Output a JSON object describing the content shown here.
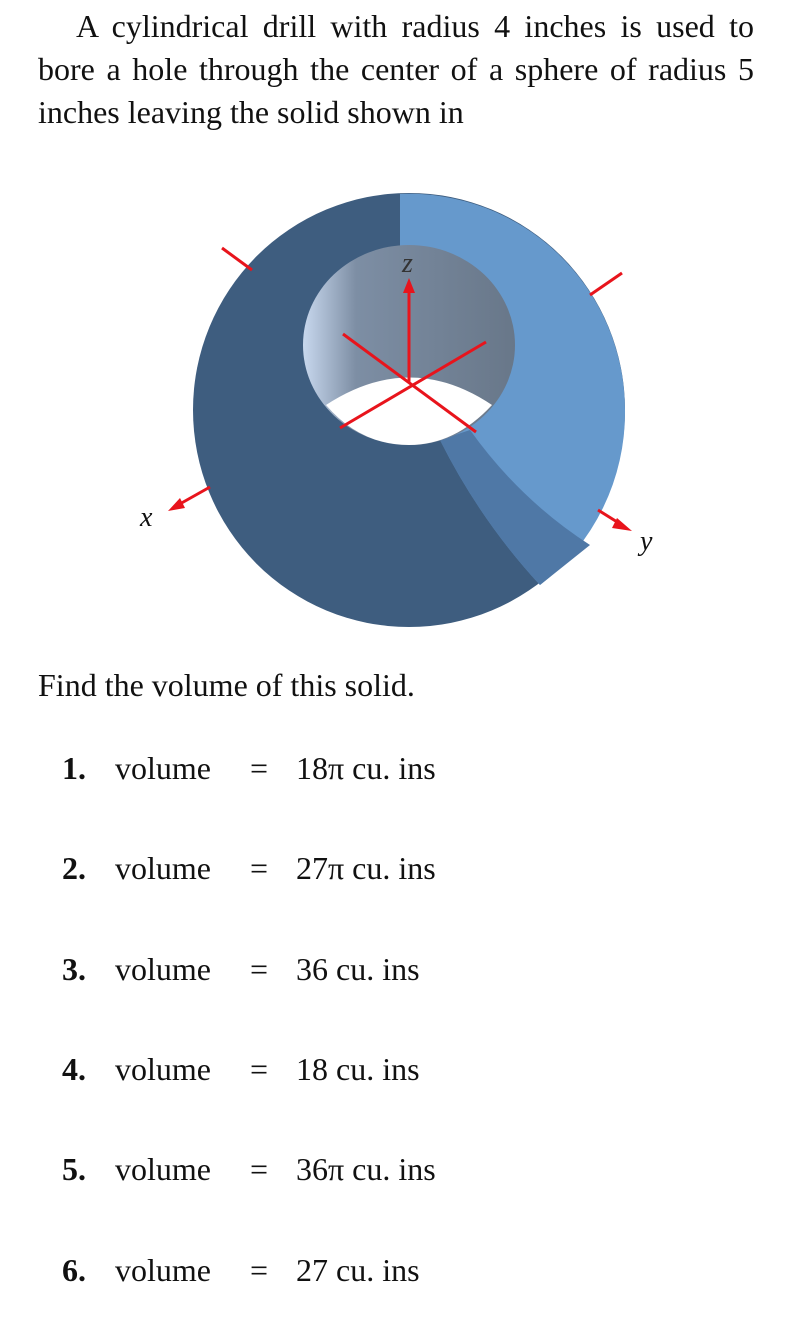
{
  "problem": {
    "text": "A cylindrical drill with radius 4 inches is used to bore a hole through the center of a sphere of radius 5 inches leaving the solid shown in",
    "figure": {
      "x_label": "x",
      "y_label": "y",
      "z_label": "z"
    },
    "prompt": "Find the volume of this solid."
  },
  "options": [
    {
      "number": "1.",
      "lhs": "volume",
      "eq": "=",
      "rhs": "18π cu. ins"
    },
    {
      "number": "2.",
      "lhs": "volume",
      "eq": "=",
      "rhs": "27π cu. ins"
    },
    {
      "number": "3.",
      "lhs": "volume",
      "eq": "=",
      "rhs": "36 cu. ins"
    },
    {
      "number": "4.",
      "lhs": "volume",
      "eq": "=",
      "rhs": "18 cu. ins"
    },
    {
      "number": "5.",
      "lhs": "volume",
      "eq": "=",
      "rhs": "36π cu. ins"
    },
    {
      "number": "6.",
      "lhs": "volume",
      "eq": "=",
      "rhs": "27 cu. ins"
    }
  ]
}
